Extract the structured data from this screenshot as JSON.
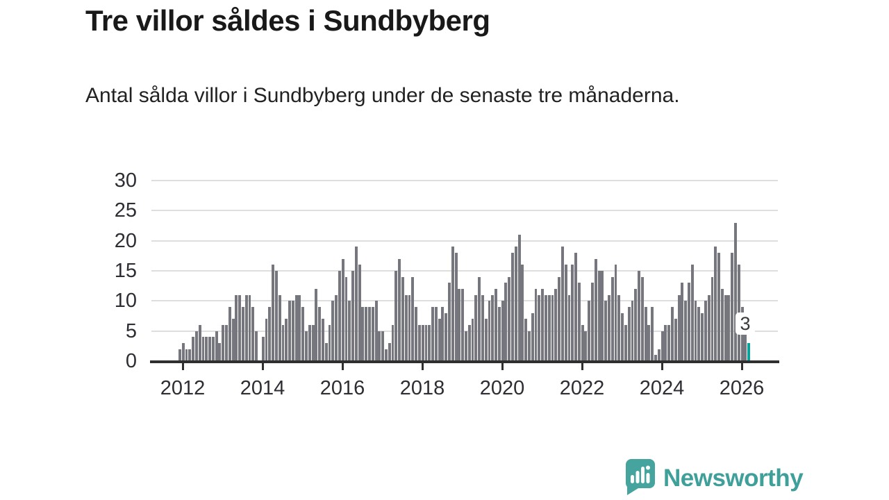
{
  "header": {
    "title": "Tre villor såldes i Sundbyberg",
    "subtitle": "Antal sålda villor i Sundbyberg under de senaste tre månaderna."
  },
  "footer": {
    "logo_text": "Newsworthy",
    "logo_icon": "newsworthy-speech-bubble-chart-icon"
  },
  "colors": {
    "bar": "#76767e",
    "highlight": "#0ca29b",
    "gridline": "#dedede",
    "axis": "#2f2f2f",
    "tick_label": "#2d2d33",
    "logo_teal": "#3f9f99"
  },
  "chart_data": {
    "type": "bar",
    "title": "Tre villor såldes i Sundbyberg",
    "subtitle": "Antal sålda villor i Sundbyberg under de senaste tre månaderna.",
    "ylabel": "",
    "xlabel": "",
    "ylim": [
      0,
      30
    ],
    "yticks": [
      0,
      5,
      10,
      15,
      20,
      25,
      30
    ],
    "xticks": [
      "2012",
      "2014",
      "2016",
      "2018",
      "2020",
      "2022",
      "2024",
      "2026"
    ],
    "grid": "horizontal",
    "x_start_label": "2011-12",
    "x_end_label": "2026",
    "values": [
      2,
      3,
      2,
      2,
      4,
      5,
      6,
      4,
      4,
      4,
      4,
      5,
      3,
      6,
      6,
      9,
      7,
      11,
      11,
      9,
      11,
      11,
      9,
      5,
      0,
      4,
      7,
      9,
      16,
      15,
      11,
      6,
      7,
      10,
      10,
      11,
      11,
      9,
      5,
      6,
      6,
      12,
      9,
      7,
      3,
      6,
      10,
      11,
      15,
      17,
      14,
      10,
      15,
      19,
      16,
      9,
      9,
      9,
      9,
      10,
      5,
      5,
      2,
      3,
      6,
      15,
      17,
      14,
      11,
      11,
      14,
      9,
      6,
      6,
      6,
      6,
      9,
      9,
      7,
      9,
      8,
      13,
      19,
      18,
      12,
      12,
      5,
      6,
      7,
      11,
      14,
      11,
      7,
      10,
      11,
      12,
      9,
      10,
      13,
      14,
      18,
      19,
      21,
      16,
      7,
      5,
      8,
      12,
      11,
      12,
      11,
      11,
      11,
      12,
      14,
      19,
      16,
      11,
      16,
      18,
      13,
      6,
      5,
      10,
      13,
      17,
      15,
      15,
      10,
      11,
      14,
      16,
      11,
      8,
      6,
      9,
      10,
      12,
      15,
      14,
      9,
      6,
      9,
      1,
      2,
      5,
      6,
      6,
      9,
      7,
      11,
      13,
      10,
      13,
      16,
      10,
      9,
      8,
      10,
      11,
      14,
      19,
      18,
      12,
      11,
      11,
      18,
      23,
      16,
      9,
      8,
      3
    ],
    "highlight_last": true,
    "annotation": {
      "label": "3",
      "value": 3,
      "applies_to": "last-bar"
    }
  }
}
